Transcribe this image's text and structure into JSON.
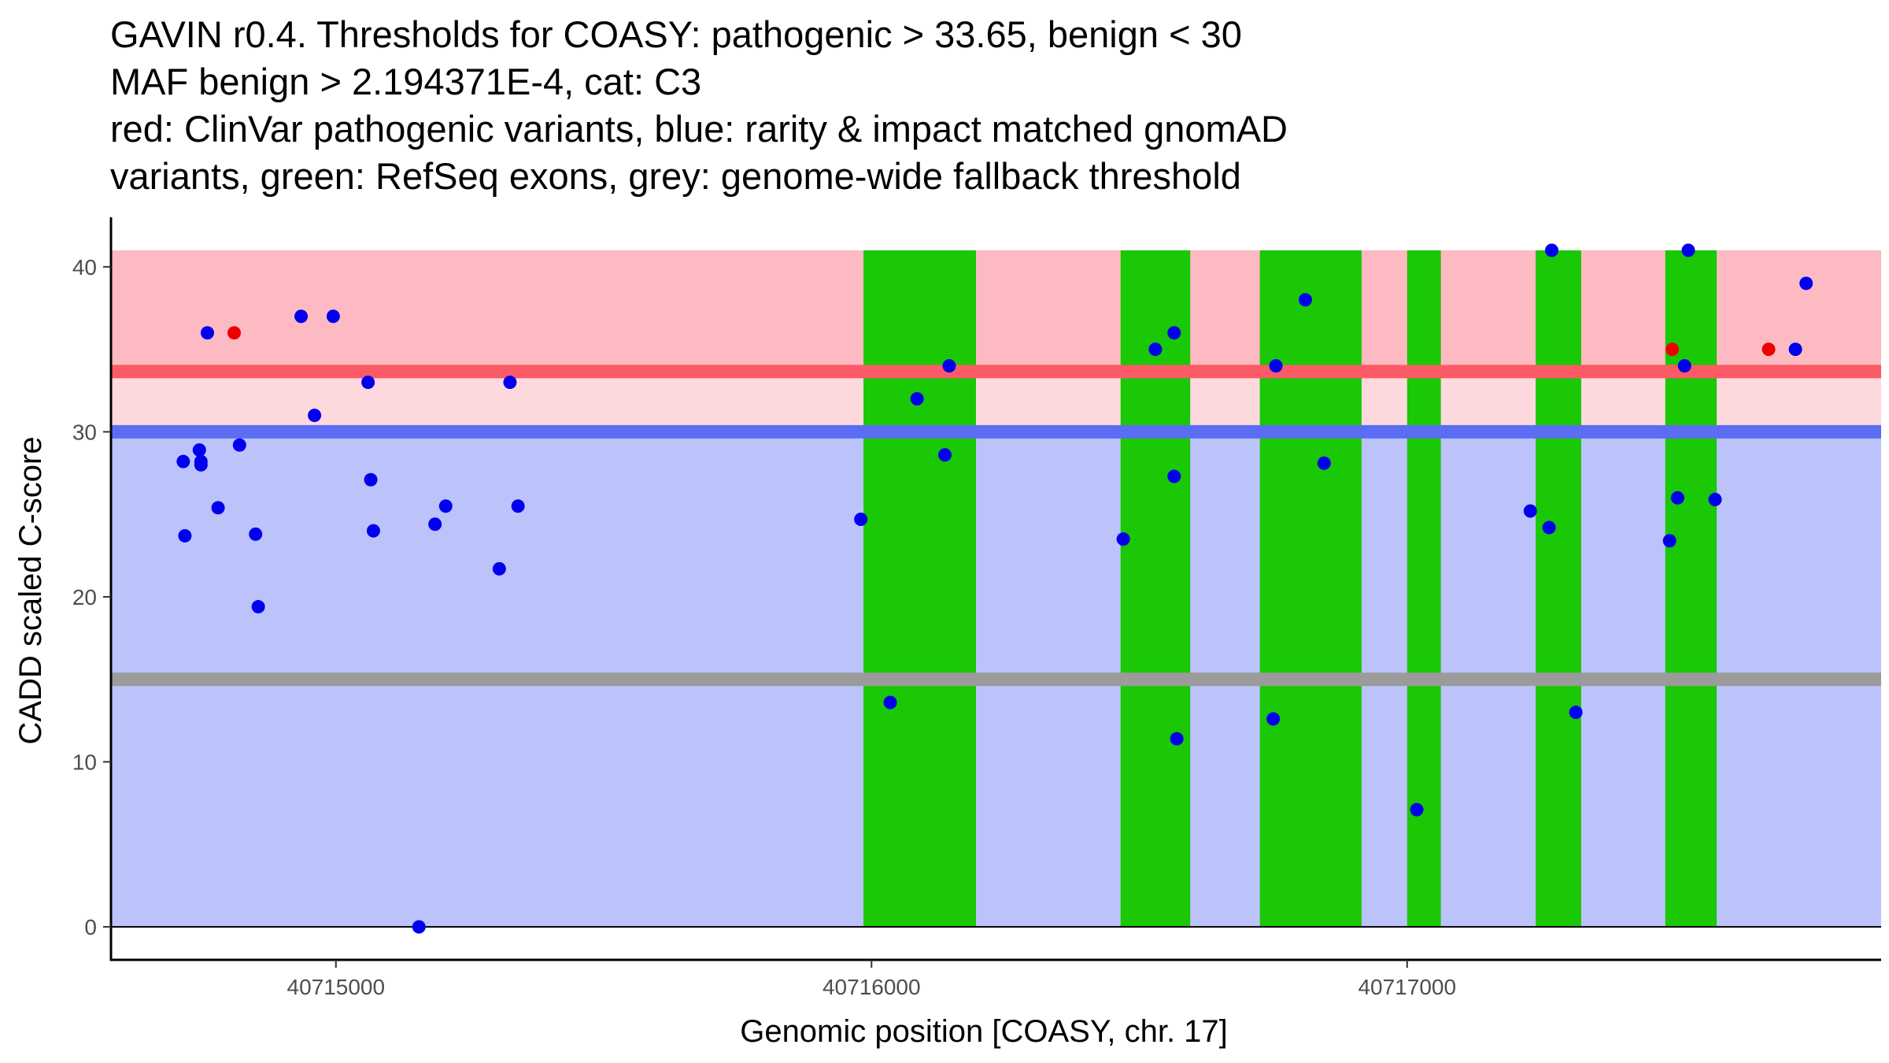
{
  "title_lines": [
    "GAVIN r0.4. Thresholds for COASY: pathogenic > 33.65, benign < 30",
    "MAF benign > 2.194371E-4, cat: C3",
    "red: ClinVar pathogenic variants, blue: rarity & impact matched gnomAD",
    "variants, green: RefSeq exons, grey: genome-wide fallback threshold"
  ],
  "chart_data": {
    "type": "scatter",
    "xlabel": "Genomic position [COASY, chr. 17]",
    "ylabel": "CADD scaled C-score",
    "xlim": [
      40714580,
      40717885
    ],
    "ylim": [
      -2,
      43
    ],
    "x_ticks": [
      40715000,
      40716000,
      40717000
    ],
    "x_tick_labels": [
      "40715000",
      "40716000",
      "40717000"
    ],
    "y_ticks": [
      0,
      10,
      20,
      30,
      40
    ],
    "y_tick_labels": [
      "0",
      "10",
      "20",
      "30",
      "40"
    ],
    "bands": {
      "pathogenic": {
        "from": 33.65,
        "to": 41,
        "color": "#fdbac2"
      },
      "middle": {
        "from": 30,
        "to": 33.65,
        "color": "#fdd9de"
      },
      "benign": {
        "from": 0,
        "to": 30,
        "color": "#bcc3fa"
      }
    },
    "threshold_lines": [
      {
        "name": "pathogenic",
        "y": 33.65,
        "color": "#fc5a67"
      },
      {
        "name": "benign",
        "y": 30,
        "color": "#5a6df3"
      },
      {
        "name": "fallback",
        "y": 15,
        "color": "#9b9b9b"
      }
    ],
    "exons": [
      [
        40715985,
        40716195
      ],
      [
        40716465,
        40716595
      ],
      [
        40716725,
        40716915
      ],
      [
        40717000,
        40717063
      ],
      [
        40717240,
        40717325
      ],
      [
        40717482,
        40717578
      ]
    ],
    "exon_color": "#1ac805",
    "series": [
      {
        "name": "ClinVar pathogenic",
        "color": "#ef0000",
        "points": [
          [
            40714810,
            36
          ],
          [
            40717495,
            35
          ],
          [
            40717675,
            35
          ]
        ]
      },
      {
        "name": "gnomAD matched",
        "color": "#0000ee",
        "points": [
          [
            40714760,
            36
          ],
          [
            40714935,
            37
          ],
          [
            40714995,
            37
          ],
          [
            40714715,
            28.2
          ],
          [
            40714745,
            28.9
          ],
          [
            40714748,
            28.0
          ],
          [
            40714748,
            28.2
          ],
          [
            40714820,
            29.2
          ],
          [
            40714780,
            25.4
          ],
          [
            40714718,
            23.7
          ],
          [
            40714850,
            23.8
          ],
          [
            40714855,
            19.4
          ],
          [
            40714960,
            31
          ],
          [
            40715060,
            33
          ],
          [
            40715065,
            27.1
          ],
          [
            40715070,
            24
          ],
          [
            40715185,
            24.4
          ],
          [
            40715205,
            25.5
          ],
          [
            40715305,
            21.7
          ],
          [
            40715325,
            33
          ],
          [
            40715340,
            25.5
          ],
          [
            40715155,
            0
          ],
          [
            40715980,
            24.7
          ],
          [
            40716035,
            13.6
          ],
          [
            40716085,
            32
          ],
          [
            40716145,
            34
          ],
          [
            40716137,
            28.6
          ],
          [
            40716470,
            23.5
          ],
          [
            40716530,
            35
          ],
          [
            40716565,
            36
          ],
          [
            40716565,
            27.3
          ],
          [
            40716570,
            11.4
          ],
          [
            40716755,
            34
          ],
          [
            40716750,
            12.6
          ],
          [
            40716810,
            38
          ],
          [
            40716845,
            28.1
          ],
          [
            40717018,
            7.1
          ],
          [
            40717230,
            25.2
          ],
          [
            40717265,
            24.2
          ],
          [
            40717270,
            41
          ],
          [
            40717315,
            13
          ],
          [
            40717490,
            23.4
          ],
          [
            40717505,
            26
          ],
          [
            40717518,
            34
          ],
          [
            40717525,
            41
          ],
          [
            40717575,
            25.9
          ],
          [
            40717725,
            35
          ],
          [
            40717745,
            39
          ]
        ]
      }
    ]
  }
}
